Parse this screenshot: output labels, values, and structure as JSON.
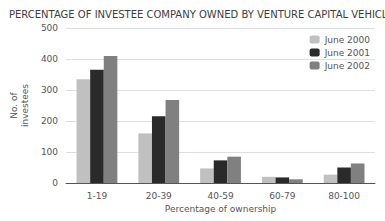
{
  "chart_data": {
    "type": "bar",
    "title": "PERCENTAGE OF INVESTEE COMPANY OWNED BY VENTURE CAPITAL VEHICLE",
    "categories": [
      "1-19",
      "20-39",
      "40-59",
      "60-79",
      "80-100"
    ],
    "series": [
      {
        "name": "June 2000",
        "color": "#c0c0c0",
        "values": [
          335,
          160,
          47,
          20,
          27
        ]
      },
      {
        "name": "June 2001",
        "color": "#2a2a2a",
        "values": [
          365,
          215,
          73,
          18,
          50
        ]
      },
      {
        "name": "June 2002",
        "color": "#808080",
        "values": [
          410,
          268,
          85,
          12,
          63
        ]
      }
    ],
    "xlabel": "Percentage of ownership",
    "ylabel": "No. of\ninvestees",
    "ylim": [
      0,
      500
    ],
    "yticks": [
      0,
      100,
      200,
      300,
      400,
      500
    ],
    "grid": true,
    "legend": "upper right"
  }
}
